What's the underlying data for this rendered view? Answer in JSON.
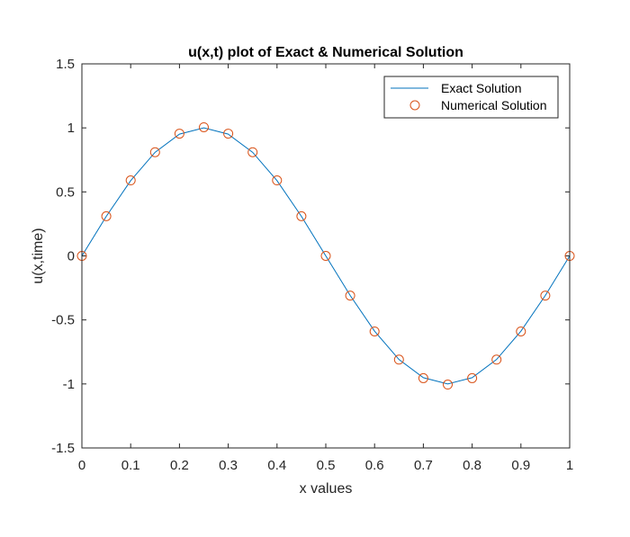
{
  "chart_data": {
    "type": "line",
    "title": "u(x,t) plot  of Exact & Numerical Solution",
    "xlabel": "x values",
    "ylabel": "u(x,time)",
    "xlim": [
      0,
      1
    ],
    "ylim": [
      -1.5,
      1.5
    ],
    "xticks": [
      "0",
      "0.1",
      "0.2",
      "0.3",
      "0.4",
      "0.5",
      "0.6",
      "0.7",
      "0.8",
      "0.9",
      "1"
    ],
    "yticks": [
      "1.5",
      "1",
      "0.5",
      "0",
      "-0.5",
      "-1",
      "-1.5"
    ],
    "grid": false,
    "legend_position": "top-right",
    "series": [
      {
        "name": "Exact Solution",
        "style": "line",
        "color": "#0072BD",
        "x": [
          0,
          0.05,
          0.1,
          0.15,
          0.2,
          0.25,
          0.3,
          0.35,
          0.4,
          0.45,
          0.5,
          0.55,
          0.6,
          0.65,
          0.7,
          0.75,
          0.8,
          0.85,
          0.9,
          0.95,
          1
        ],
        "y": [
          0,
          0.309,
          0.588,
          0.809,
          0.951,
          1,
          0.951,
          0.809,
          0.588,
          0.309,
          0,
          -0.309,
          -0.588,
          -0.809,
          -0.951,
          -1,
          -0.951,
          -0.809,
          -0.588,
          -0.309,
          0
        ]
      },
      {
        "name": "Numerical Solution",
        "style": "markers",
        "color": "#D95319",
        "x": [
          0,
          0.05,
          0.1,
          0.15,
          0.2,
          0.25,
          0.3,
          0.35,
          0.4,
          0.45,
          0.5,
          0.55,
          0.6,
          0.65,
          0.7,
          0.75,
          0.8,
          0.85,
          0.9,
          0.95,
          1
        ],
        "y": [
          0,
          0.31,
          0.59,
          0.81,
          0.955,
          1.005,
          0.955,
          0.81,
          0.59,
          0.31,
          0,
          -0.31,
          -0.59,
          -0.81,
          -0.955,
          -1.005,
          -0.955,
          -0.81,
          -0.59,
          -0.31,
          0
        ]
      }
    ]
  }
}
